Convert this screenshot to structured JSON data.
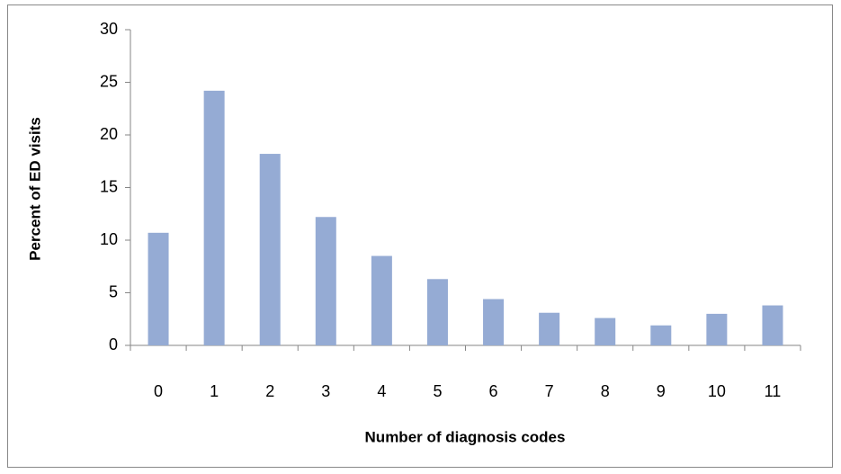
{
  "chart_data": {
    "type": "bar",
    "x_label": "Number of diagnosis codes",
    "y_label": "Percent of ED visits",
    "categories": [
      "0",
      "1",
      "2",
      "3",
      "4",
      "5",
      "6",
      "7",
      "8",
      "9",
      "10",
      "11"
    ],
    "values": [
      10.7,
      24.2,
      18.2,
      12.2,
      8.5,
      6.3,
      4.4,
      3.1,
      2.6,
      1.9,
      3.0,
      3.8
    ],
    "color": "#95abd4",
    "ylim": [
      0,
      30
    ],
    "yticks": [
      0,
      5,
      10,
      15,
      20,
      25,
      30
    ],
    "grid": false
  }
}
